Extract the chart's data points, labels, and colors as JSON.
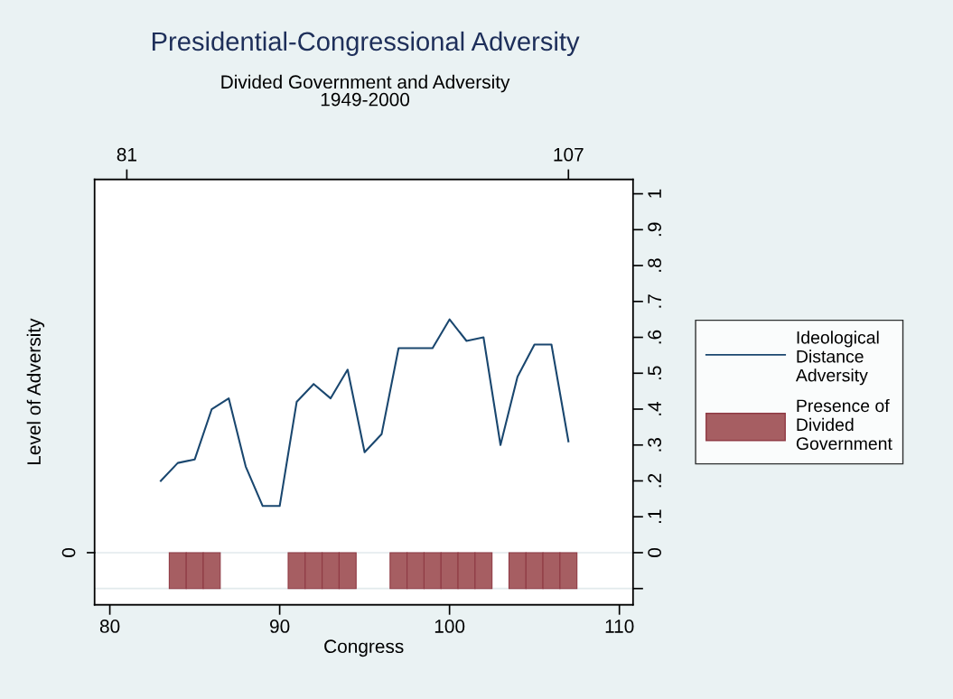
{
  "chart_data": {
    "type": "line",
    "title": "Presidential-Congressional Adversity",
    "subtitle": "Divided Government and Adversity\n1949-2000",
    "xlabel": "Congress",
    "ylabel": "Level of Adversity",
    "series": [
      {
        "name": "Ideological\nDistance\nAdversity",
        "color": "#1a476f",
        "x": [
          83,
          84,
          85,
          86,
          87,
          88,
          89,
          90,
          91,
          92,
          93,
          94,
          95,
          96,
          97,
          98,
          99,
          100,
          101,
          102,
          103,
          104,
          105,
          106,
          107
        ],
        "values": [
          0.2,
          0.25,
          0.26,
          0.4,
          0.43,
          0.24,
          0.13,
          0.13,
          0.42,
          0.47,
          0.43,
          0.51,
          0.28,
          0.33,
          0.57,
          0.57,
          0.57,
          0.65,
          0.59,
          0.6,
          0.3,
          0.49,
          0.58,
          0.58,
          0.31
        ]
      },
      {
        "name": "Presence of\nDivided\nGovernment",
        "type": "bar",
        "color": "#a65e62",
        "x": [
          84,
          85,
          86,
          91,
          92,
          93,
          94,
          97,
          98,
          99,
          100,
          101,
          102,
          104,
          105,
          106,
          107
        ],
        "values": [
          -0.1,
          -0.1,
          -0.1,
          -0.1,
          -0.1,
          -0.1,
          -0.1,
          -0.1,
          -0.1,
          -0.1,
          -0.1,
          -0.1,
          -0.1,
          -0.1,
          -0.1,
          -0.1,
          -0.1
        ]
      }
    ],
    "xlim": [
      79.1,
      110.8
    ],
    "xticks": [
      80,
      90,
      100,
      110
    ],
    "x2lim": [
      79.1,
      110.8
    ],
    "x2ticks": [
      81,
      107
    ],
    "annotations": [
      "0"
    ],
    "ref_lines": [
      {
        "axis": "y",
        "value": 0,
        "color": "#e2eaec"
      },
      {
        "axis": "y",
        "value": -0.1,
        "color": "#e2eaec"
      }
    ],
    "ylim": [
      -0.145,
      1.04
    ],
    "yticks": [
      {
        "value": -0.1,
        "label": null
      },
      {
        "value": 0,
        "label": "0"
      },
      {
        "value": 0.1,
        "label": ".1"
      },
      {
        "value": 0.2,
        "label": ".2"
      },
      {
        "value": 0.3,
        "label": ".3"
      },
      {
        "value": 0.4,
        "label": ".4"
      },
      {
        "value": 0.5,
        "label": ".5"
      },
      {
        "value": 0.6,
        "label": ".6"
      },
      {
        "value": 0.7,
        "label": ".7"
      },
      {
        "value": 0.8,
        "label": ".8"
      },
      {
        "value": 0.9,
        "label": ".9"
      },
      {
        "value": 1,
        "label": "1"
      }
    ],
    "legend": "right",
    "line_style": "solid",
    "marker": "none"
  }
}
